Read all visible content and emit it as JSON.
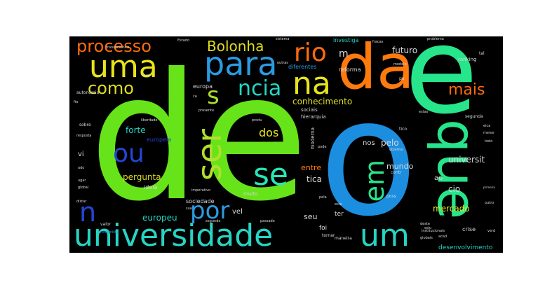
{
  "image": {
    "type": "word-cloud",
    "background": "#000000"
  },
  "words": {
    "de": {
      "text": "de",
      "color": "#67e31a"
    },
    "o": {
      "text": "o",
      "color": "#1b8ee0"
    },
    "e": {
      "text": "e",
      "color": "#27e58a"
    },
    "da": {
      "text": "da",
      "color": "#ff7a0d"
    },
    "que": {
      "text": "que",
      "color": "#27e58a"
    },
    "universidade": {
      "text": "universidade",
      "color": "#27d4c3"
    },
    "um": {
      "text": "um",
      "color": "#27d4c3"
    },
    "uma": {
      "text": "uma",
      "color": "#e7e51a"
    },
    "para": {
      "text": "para",
      "color": "#2b9be0"
    },
    "rio": {
      "text": "rio",
      "color": "#ff6a0d"
    },
    "na": {
      "text": "na",
      "color": "#e7e51a"
    },
    "ser": {
      "text": "ser",
      "color": "#b0df2c"
    },
    "se": {
      "text": "se",
      "color": "#27e5b8"
    },
    "ou": {
      "text": "ou",
      "color": "#2346d8"
    },
    "por": {
      "text": "por",
      "color": "#2b9be0"
    },
    "n": {
      "text": "n",
      "color": "#2346d8"
    },
    "em": {
      "text": "em",
      "color": "#27e58a"
    },
    "ncia": {
      "text": "ncia",
      "color": "#27d4c3"
    },
    "s": {
      "text": "s",
      "color": "#b0df2c"
    },
    "como": {
      "text": "como",
      "color": "#dddd22"
    },
    "processo": {
      "text": "processo",
      "color": "#ff6a0d"
    },
    "Bolonha": {
      "text": "Bolonha",
      "color": "#dddd22"
    },
    "mais": {
      "text": "mais",
      "color": "#ff6a0d"
    },
    "dos": {
      "text": "dos",
      "color": "#e7e51a"
    },
    "conhecimento": {
      "text": "conhecimento",
      "color": "#dddd22"
    },
    "forte": {
      "text": "forte",
      "color": "#27d4c3"
    },
    "pergunta": {
      "text": "pergunta",
      "color": "#dddd22"
    },
    "europeu": {
      "text": "europeu",
      "color": "#27d4c3"
    },
    "mercado": {
      "text": "mercado",
      "color": "#e7e51a"
    },
    "universit": {
      "text": "universit",
      "color": "#d8d8d8"
    },
    "mundo": {
      "text": "mundo",
      "color": "#d8d8d8"
    },
    "futuro": {
      "text": "futuro",
      "color": "#d8d8d8"
    },
    "entre": {
      "text": "entre",
      "color": "#ff7a0d"
    },
    "tica": {
      "text": "tica",
      "color": "#d8d8d8"
    },
    "seu": {
      "text": "seu",
      "color": "#d8d8d8"
    },
    "pelo": {
      "text": "pelo",
      "color": "#d8d8d8"
    },
    "nos": {
      "text": "nos",
      "color": "#d8d8d8"
    },
    "ao": {
      "text": "ao",
      "color": "#d8d8d8"
    },
    "cio": {
      "text": "cio",
      "color": "#d8d8d8"
    },
    "m": {
      "text": "m",
      "color": "#d8d8d8"
    },
    "desenvolvimento": {
      "text": "desenvolvimento",
      "color": "#27d4c3"
    },
    "vel": {
      "text": "vel",
      "color": "#d8d8d8"
    },
    "ideia": {
      "text": "ideia",
      "color": "#d8d8d8"
    },
    "sociedade": {
      "text": "sociedade",
      "color": "#d8d8d8"
    },
    "europeia": {
      "text": "europeia",
      "color": "#2346d8"
    },
    "europa": {
      "text": "europa",
      "color": "#d8d8d8"
    },
    "vi": {
      "text": "vi",
      "color": "#d8d8d8"
    },
    "investiga": {
      "text": "investiga",
      "color": "#27d4c3"
    },
    "reforma": {
      "text": "reforma",
      "color": "#d8d8d8"
    },
    "diferentes": {
      "text": "diferentes",
      "color": "#2b9be0"
    },
    "foi": {
      "text": "foi",
      "color": "#d8d8d8"
    },
    "ter": {
      "text": "ter",
      "color": "#d8d8d8"
    },
    "muito": {
      "text": "muito",
      "color": "#d8d8d8"
    },
    "sociais": {
      "text": "sociais",
      "color": "#d8d8d8"
    },
    "hierarquia": {
      "text": "hierarquia",
      "color": "#d8d8d8"
    },
    "moderna": {
      "text": "moderna",
      "color": "#d8d8d8"
    },
    "ranking": {
      "text": "ranking",
      "color": "#d8d8d8"
    },
    "segunda": {
      "text": "segunda",
      "color": "#d8d8d8"
    },
    "crise": {
      "text": "crise",
      "color": "#d8d8d8"
    },
    "maneira": {
      "text": "maneira",
      "color": "#d8d8d8"
    },
    "segundo": {
      "text": "segundo",
      "color": "#d8d8d8"
    },
    "passado": {
      "text": "passado",
      "color": "#d8d8d8"
    },
    "tornar": {
      "text": "tornar",
      "color": "#d8d8d8"
    },
    "autonomia": {
      "text": "autonomia",
      "color": "#d8d8d8"
    },
    "liberdade": {
      "text": "liberdade",
      "color": "#d8d8d8"
    },
    "sobre": {
      "text": "sobre",
      "color": "#d8d8d8"
    },
    "presente": {
      "text": "presente",
      "color": "#d8d8d8"
    },
    "imperativo": {
      "text": "imperativo",
      "color": "#d8d8d8"
    },
    "valor": {
      "text": "valor",
      "color": "#d8d8d8"
    },
    "reformista": {
      "text": "reformista",
      "color": "#2b9be0"
    },
    "distar": {
      "text": "distar",
      "color": "#d8d8d8"
    },
    "Estado": {
      "text": "Estado",
      "color": "#d8d8d8"
    },
    "transacionais": {
      "text": "transacionais",
      "color": "#d8d8d8"
    },
    "institucionais": {
      "text": "institucionais",
      "color": "#d8d8d8"
    },
    "globais": {
      "text": "globais",
      "color": "#d8d8d8"
    },
    "sistema": {
      "text": "sistema",
      "color": "#d8d8d8"
    },
    "problema": {
      "text": "problema",
      "color": "#d8d8d8"
    },
    "modelo": {
      "text": "modelo",
      "color": "#d8d8d8"
    },
    "objetivo": {
      "text": "objetivo",
      "color": "#d8d8d8"
    },
    "estas": {
      "text": "estas",
      "color": "#d8d8d8"
    },
    "menor": {
      "text": "menor",
      "color": "#d8d8d8"
    },
    "todo": {
      "text": "todo",
      "color": "#d8d8d8"
    },
    "tal": {
      "text": "tal",
      "color": "#d8d8d8"
    },
    "pa": {
      "text": "pa",
      "color": "#d8d8d8"
    },
    "tico": {
      "text": "tico",
      "color": "#d8d8d8"
    },
    "contr": {
      "text": "contr",
      "color": "#d8d8d8"
    },
    "poss": {
      "text": "poss",
      "color": "#d8d8d8"
    },
    "deste": {
      "text": "deste",
      "color": "#d8d8d8"
    },
    "acad": {
      "text": "acad",
      "color": "#d8d8d8"
    },
    "soiu": {
      "text": "soiu",
      "color": "#d8d8d8"
    },
    "verd": {
      "text": "verd",
      "color": "#d8d8d8"
    },
    "eica": {
      "text": "eica",
      "color": "#d8d8d8"
    },
    "primeira": {
      "text": "primeira",
      "color": "#d8d8d8"
    },
    "outro": {
      "text": "outro",
      "color": "#d8d8d8"
    },
    "quai": {
      "text": "quai",
      "color": "#d8d8d8"
    },
    "pode": {
      "text": "pode",
      "color": "#d8d8d8"
    },
    "fia": {
      "text": "fia",
      "color": "#d8d8d8"
    },
    "ado": {
      "text": "ado",
      "color": "#d8d8d8"
    },
    "sua": {
      "text": "sua",
      "color": "#d8d8d8"
    },
    "ugar": {
      "text": "ugar",
      "color": "#d8d8d8"
    },
    "este": {
      "text": "este",
      "color": "#d8d8d8"
    },
    "fracas": {
      "text": "fracas",
      "color": "#d8d8d8"
    },
    "outras": {
      "text": "outras",
      "color": "#d8d8d8"
    },
    "produ": {
      "text": "produ",
      "color": "#d8d8d8"
    },
    "pela": {
      "text": "pela",
      "color": "#d8d8d8"
    },
    "ca": {
      "text": "ca",
      "color": "#d8d8d8"
    },
    "resposta": {
      "text": "resposta",
      "color": "#d8d8d8"
    },
    "global": {
      "text": "global",
      "color": "#d8d8d8"
    }
  }
}
